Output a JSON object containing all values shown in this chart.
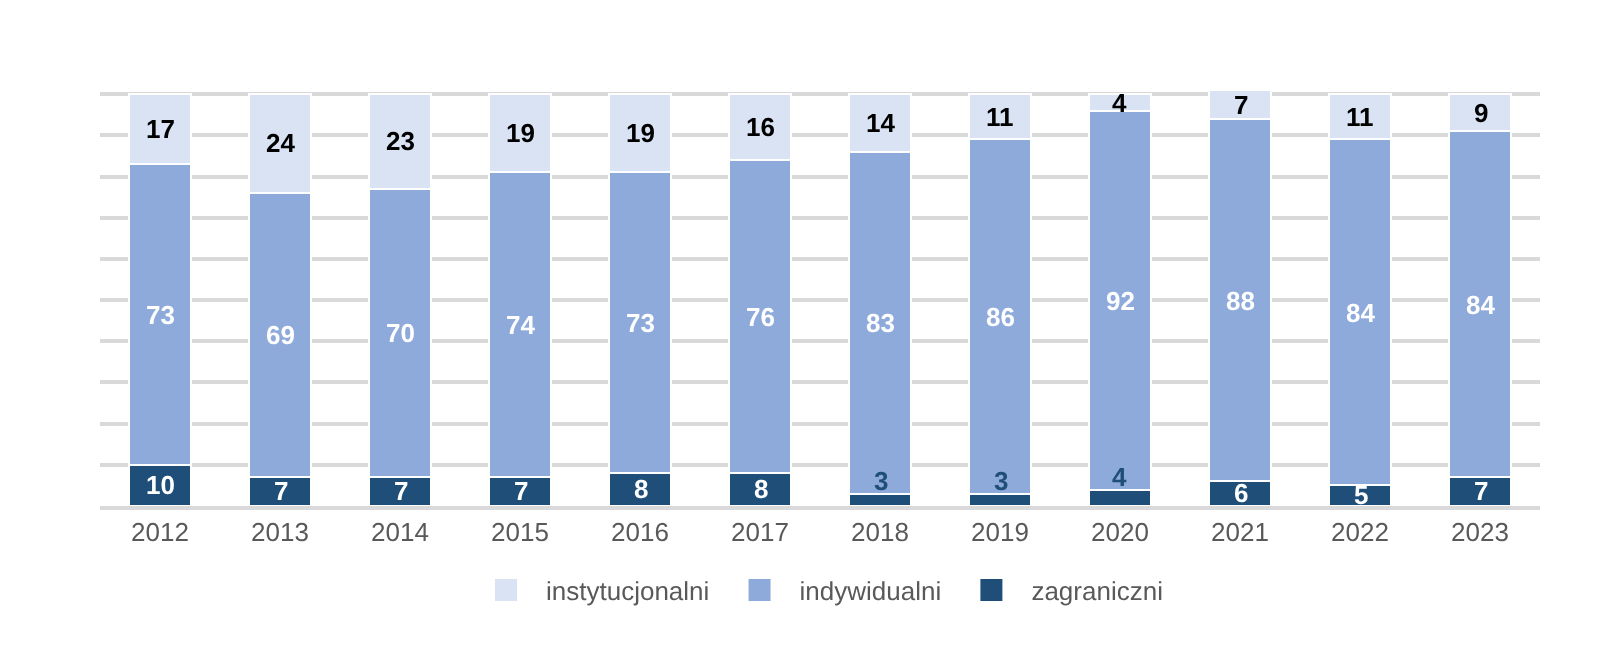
{
  "chart_data": {
    "type": "bar",
    "stacked": true,
    "categories": [
      "2012",
      "2013",
      "2014",
      "2015",
      "2016",
      "2017",
      "2018",
      "2019",
      "2020",
      "2021",
      "2022",
      "2023"
    ],
    "series": [
      {
        "name": "zagraniczni",
        "color": "#1f4e79",
        "values": [
          10,
          7,
          7,
          7,
          8,
          8,
          3,
          3,
          4,
          6,
          5,
          7
        ]
      },
      {
        "name": "indywidualni",
        "color": "#8eaadb",
        "values": [
          73,
          69,
          70,
          74,
          73,
          76,
          83,
          86,
          92,
          88,
          84,
          84
        ]
      },
      {
        "name": "instytucjonalni",
        "color": "#dae3f3",
        "values": [
          17,
          24,
          23,
          19,
          19,
          16,
          14,
          11,
          4,
          7,
          11,
          9
        ]
      }
    ],
    "ylim": [
      0,
      101
    ],
    "yticks": [
      {
        "value": 0,
        "label": null
      },
      {
        "value": 10,
        "label": null
      },
      {
        "value": 20,
        "label": null
      },
      {
        "value": 30,
        "label": null
      },
      {
        "value": 40,
        "label": null
      },
      {
        "value": 50,
        "label": null
      },
      {
        "value": 60,
        "label": null
      },
      {
        "value": 70,
        "label": null
      },
      {
        "value": 80,
        "label": null
      },
      {
        "value": 90,
        "label": null
      },
      {
        "value": 100,
        "label": null
      }
    ],
    "tick_labels": "x",
    "grid": "y",
    "legend": "bottom",
    "data_labels": true
  }
}
